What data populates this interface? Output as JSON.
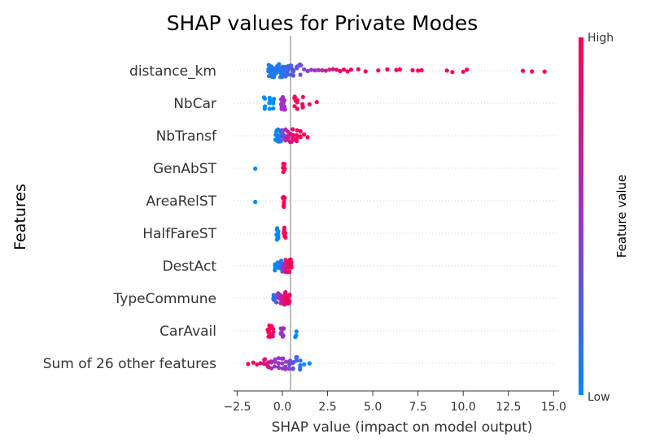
{
  "chart_data": {
    "type": "scatter",
    "title": "SHAP values for Private Modes",
    "xlabel": "SHAP value (impact on model output)",
    "ylabel": "Features",
    "xlim": [
      -2.7,
      15.3
    ],
    "xticks": [
      -2.5,
      0.0,
      2.5,
      5.0,
      7.5,
      10.0,
      12.5,
      15.0
    ],
    "xtick_labels": [
      "−2.5",
      "0.0",
      "2.5",
      "5.0",
      "7.5",
      "10.0",
      "12.5",
      "15.0"
    ],
    "features": [
      "distance_km",
      "NbCar",
      "NbTransf",
      "GenAbST",
      "AreaRelST",
      "HalfFareST",
      "DestAct",
      "TypeCommune",
      "CarAvail",
      "Sum of 26 other features"
    ],
    "colorbar": {
      "label": "Feature value",
      "high_label": "High",
      "low_label": "Low",
      "low_color": "#008bfb",
      "mid_color": "#9b33c6",
      "high_color": "#ff0052"
    },
    "grid": "dotted horizontal row lines",
    "legend": "colorbar right",
    "series": [
      {
        "feature": "distance_km",
        "points": [
          [
            -0.75,
            0.05
          ],
          [
            -0.7,
            0.1
          ],
          [
            -0.6,
            0.1
          ],
          [
            -0.5,
            0.1
          ],
          [
            -0.4,
            0.1
          ],
          [
            -0.3,
            0.1
          ],
          [
            -0.2,
            0.1
          ],
          [
            -0.1,
            0.1
          ],
          [
            0.0,
            0.15
          ],
          [
            0.1,
            0.15
          ],
          [
            0.2,
            0.15
          ],
          [
            0.3,
            0.2
          ],
          [
            0.45,
            0.25
          ],
          [
            0.6,
            0.3
          ],
          [
            0.8,
            0.3
          ],
          [
            1.0,
            0.35
          ],
          [
            1.2,
            0.4
          ],
          [
            1.4,
            0.45
          ],
          [
            1.6,
            0.5
          ],
          [
            1.8,
            0.5
          ],
          [
            2.0,
            0.55
          ],
          [
            2.2,
            0.6
          ],
          [
            2.4,
            0.7
          ],
          [
            2.6,
            0.75
          ],
          [
            2.8,
            0.8
          ],
          [
            3.0,
            0.85
          ],
          [
            3.2,
            0.9
          ],
          [
            3.4,
            0.9
          ],
          [
            3.6,
            0.95
          ],
          [
            3.8,
            0.95
          ],
          [
            4.2,
            1.0
          ],
          [
            4.6,
            1.0
          ],
          [
            5.3,
            1.0
          ],
          [
            5.8,
            1.0
          ],
          [
            6.3,
            1.0
          ],
          [
            6.5,
            1.0
          ],
          [
            7.2,
            1.0
          ],
          [
            7.5,
            1.0
          ],
          [
            7.7,
            1.0
          ],
          [
            9.1,
            1.0
          ],
          [
            9.4,
            1.0
          ],
          [
            10.0,
            1.0
          ],
          [
            10.2,
            1.0
          ],
          [
            13.3,
            1.0
          ],
          [
            13.8,
            1.0
          ],
          [
            14.5,
            1.0
          ]
        ]
      },
      {
        "feature": "NbCar",
        "points": [
          [
            -1.0,
            0.0
          ],
          [
            -0.7,
            0.0
          ],
          [
            -0.5,
            0.0
          ],
          [
            -0.05,
            0.5
          ],
          [
            0.0,
            0.5
          ],
          [
            0.05,
            0.5
          ],
          [
            0.15,
            0.55
          ],
          [
            0.7,
            1.0
          ],
          [
            0.8,
            1.0
          ],
          [
            1.1,
            1.0
          ],
          [
            1.5,
            1.0
          ],
          [
            1.9,
            1.0
          ]
        ]
      },
      {
        "feature": "NbTransf",
        "points": [
          [
            -0.35,
            0.0
          ],
          [
            -0.3,
            0.0
          ],
          [
            -0.25,
            0.05
          ],
          [
            -0.2,
            0.05
          ],
          [
            -0.15,
            0.1
          ],
          [
            -0.1,
            0.15
          ],
          [
            0.0,
            0.3
          ],
          [
            0.1,
            0.4
          ],
          [
            0.2,
            0.6
          ],
          [
            0.3,
            0.7
          ],
          [
            0.45,
            0.8
          ],
          [
            0.6,
            0.9
          ],
          [
            0.8,
            0.95
          ],
          [
            1.0,
            1.0
          ],
          [
            1.2,
            1.0
          ],
          [
            1.4,
            1.0
          ]
        ]
      },
      {
        "feature": "GenAbST",
        "points": [
          [
            -1.5,
            0.0
          ],
          [
            0.05,
            1.0
          ],
          [
            0.1,
            1.0
          ]
        ]
      },
      {
        "feature": "AreaRelST",
        "points": [
          [
            -1.5,
            0.0
          ],
          [
            0.05,
            1.0
          ],
          [
            0.1,
            1.0
          ]
        ]
      },
      {
        "feature": "HalfFareST",
        "points": [
          [
            -0.3,
            0.0
          ],
          [
            -0.25,
            0.0
          ],
          [
            0.1,
            1.0
          ],
          [
            0.15,
            1.0
          ]
        ]
      },
      {
        "feature": "DestAct",
        "points": [
          [
            -0.4,
            0.0
          ],
          [
            -0.3,
            0.0
          ],
          [
            -0.2,
            0.05
          ],
          [
            -0.1,
            0.1
          ],
          [
            0.0,
            0.3
          ],
          [
            0.1,
            0.6
          ],
          [
            0.2,
            0.8
          ],
          [
            0.3,
            0.9
          ],
          [
            0.4,
            1.0
          ],
          [
            0.5,
            1.0
          ]
        ]
      },
      {
        "feature": "TypeCommune",
        "points": [
          [
            -0.5,
            0.1
          ],
          [
            -0.4,
            0.2
          ],
          [
            -0.3,
            0.3
          ],
          [
            -0.2,
            0.5
          ],
          [
            -0.1,
            0.6
          ],
          [
            0.0,
            0.7
          ],
          [
            0.1,
            0.8
          ],
          [
            0.2,
            0.9
          ],
          [
            0.3,
            1.0
          ],
          [
            0.4,
            0.9
          ]
        ]
      },
      {
        "feature": "CarAvail",
        "points": [
          [
            -0.8,
            1.0
          ],
          [
            -0.7,
            1.0
          ],
          [
            -0.6,
            1.0
          ],
          [
            -0.5,
            0.9
          ],
          [
            -0.05,
            0.5
          ],
          [
            0.0,
            0.5
          ],
          [
            0.05,
            0.5
          ],
          [
            0.75,
            0.0
          ]
        ]
      },
      {
        "feature": "Sum of 26 other features",
        "points": [
          [
            -1.9,
            1.0
          ],
          [
            -1.6,
            1.0
          ],
          [
            -1.4,
            0.95
          ],
          [
            -1.2,
            0.9
          ],
          [
            -1.0,
            0.85
          ],
          [
            -0.8,
            0.8
          ],
          [
            -0.6,
            0.6
          ],
          [
            -0.4,
            0.5
          ],
          [
            -0.2,
            0.45
          ],
          [
            0.0,
            0.5
          ],
          [
            0.2,
            0.5
          ],
          [
            0.4,
            0.4
          ],
          [
            0.6,
            0.3
          ],
          [
            0.8,
            0.2
          ],
          [
            1.0,
            0.1
          ],
          [
            1.2,
            0.05
          ],
          [
            1.5,
            0.0
          ]
        ]
      }
    ]
  }
}
